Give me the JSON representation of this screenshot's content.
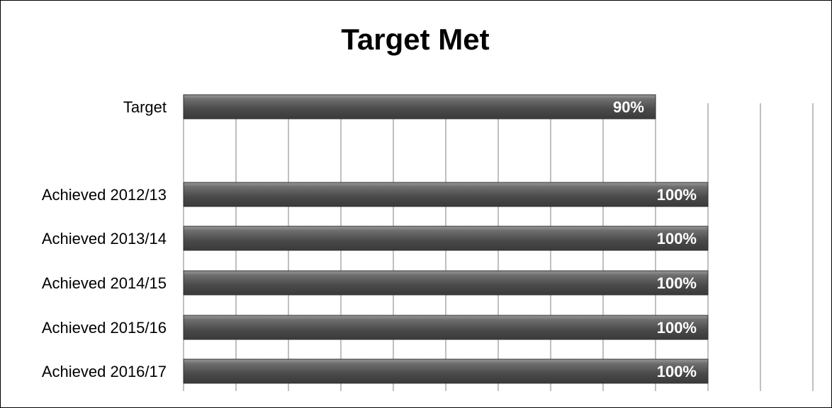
{
  "chart_data": {
    "type": "bar",
    "orientation": "horizontal",
    "title": "Target Met",
    "categories": [
      "Target",
      "",
      "Achieved 2012/13",
      "Achieved 2013/14",
      "Achieved 2014/15",
      "Achieved 2015/16",
      "Achieved 2016/17"
    ],
    "values": [
      90,
      null,
      100,
      100,
      100,
      100,
      100
    ],
    "data_labels": [
      "90%",
      "",
      "100%",
      "100%",
      "100%",
      "100%",
      "100%"
    ],
    "xlim": [
      0,
      120
    ],
    "grid": true,
    "legend": "none",
    "colors": {
      "bar": "#5a5a5a",
      "bar_highlight": "#9a9a9a",
      "gridline": "#808080",
      "label_text": "#ffffff"
    }
  }
}
